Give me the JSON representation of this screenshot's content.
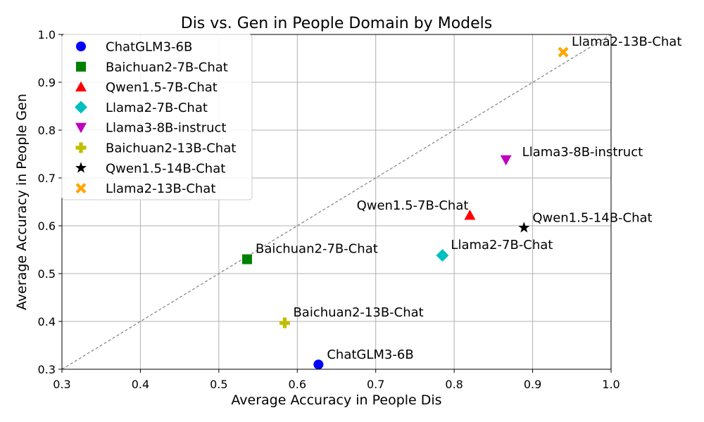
{
  "chart_data": {
    "type": "scatter",
    "title": "Dis vs. Gen in People Domain by Models",
    "xlabel": "Average Accuracy in People Dis",
    "ylabel": "Average Accuracy in People Gen",
    "xlim": [
      0.3,
      1.0
    ],
    "ylim": [
      0.3,
      1.0
    ],
    "xticks": [
      "0.3",
      "0.4",
      "0.5",
      "0.6",
      "0.7",
      "0.8",
      "0.9",
      "1.0"
    ],
    "yticks": [
      "0.3",
      "0.4",
      "0.5",
      "0.6",
      "0.7",
      "0.8",
      "0.9",
      "1.0"
    ],
    "grid": true,
    "legend_position": "top-left",
    "diagonal": {
      "from": [
        0.3,
        0.3
      ],
      "to": [
        1.0,
        1.0
      ],
      "color": "#808080"
    },
    "series": [
      {
        "name": "ChatGLM3-6B",
        "x": 0.627,
        "y": 0.31,
        "marker": "circle",
        "color": "#0000ff"
      },
      {
        "name": "Baichuan2-7B-Chat",
        "x": 0.536,
        "y": 0.53,
        "marker": "square",
        "color": "#008000"
      },
      {
        "name": "Qwen1.5-7B-Chat",
        "x": 0.82,
        "y": 0.622,
        "marker": "triangle-up",
        "color": "#ff0000"
      },
      {
        "name": "Llama2-7B-Chat",
        "x": 0.785,
        "y": 0.538,
        "marker": "diamond",
        "color": "#00bfbf"
      },
      {
        "name": "Llama3-8B-instruct",
        "x": 0.866,
        "y": 0.738,
        "marker": "triangle-down",
        "color": "#bf00bf"
      },
      {
        "name": "Baichuan2-13B-Chat",
        "x": 0.584,
        "y": 0.397,
        "marker": "plus",
        "color": "#bfbf00"
      },
      {
        "name": "Qwen1.5-14B-Chat",
        "x": 0.889,
        "y": 0.596,
        "marker": "star",
        "color": "#000000"
      },
      {
        "name": "Llama2-13B-Chat",
        "x": 0.939,
        "y": 0.963,
        "marker": "x",
        "color": "#ffa500"
      }
    ]
  }
}
